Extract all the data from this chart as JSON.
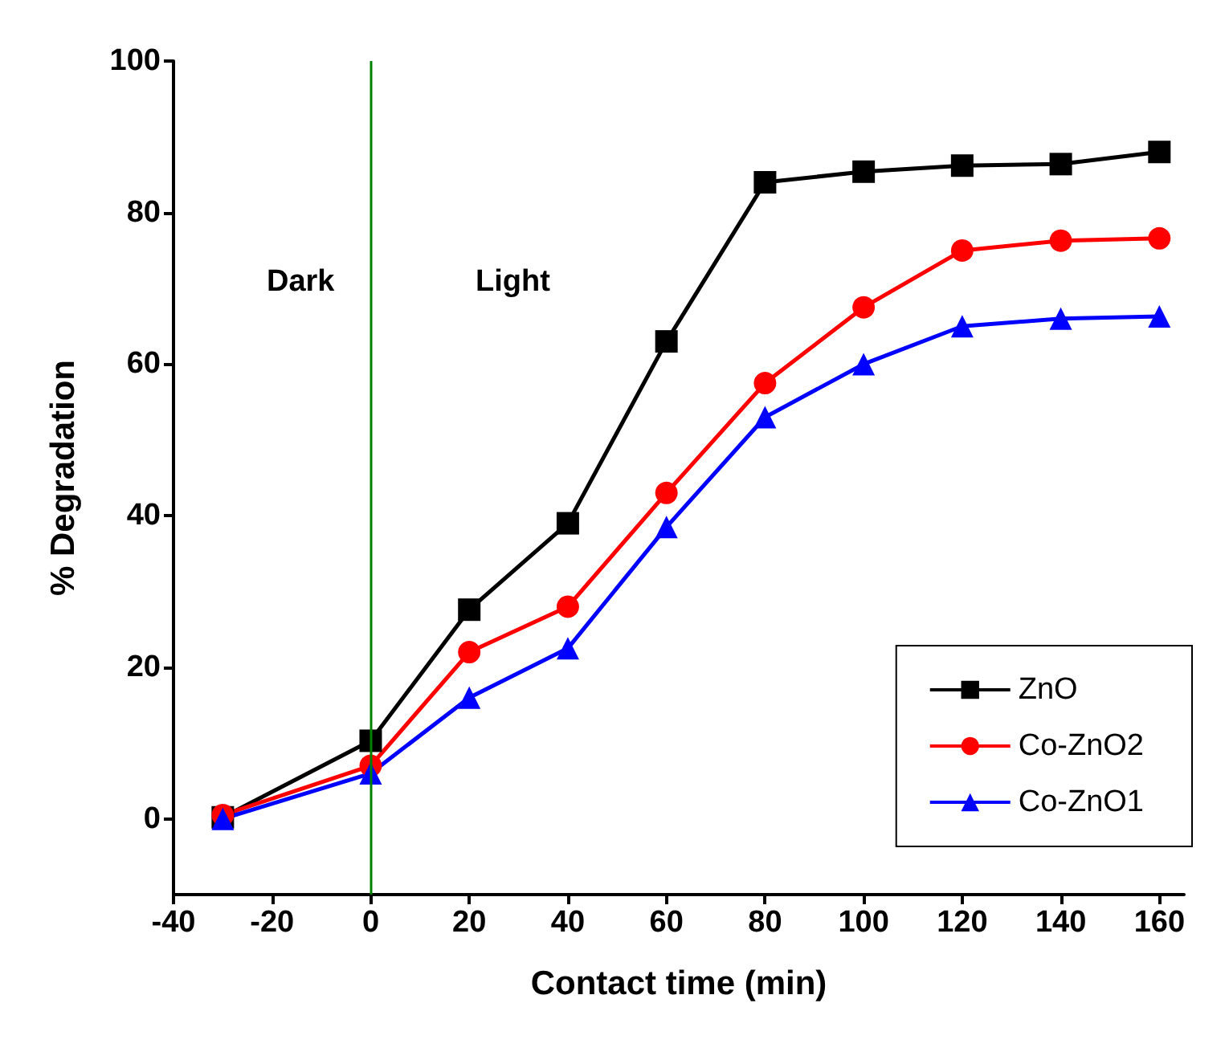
{
  "chart_data": {
    "type": "line",
    "xlabel": "Contact time (min)",
    "ylabel": "% Degradation",
    "x": [
      -30,
      0,
      20,
      40,
      60,
      80,
      100,
      120,
      140,
      160
    ],
    "series": [
      {
        "name": "ZnO",
        "color": "#000000",
        "marker": "square",
        "values": [
          0.2,
          10.3,
          27.6,
          39,
          63,
          84,
          85.4,
          86.2,
          86.4,
          88
        ]
      },
      {
        "name": "Co-ZnO2",
        "color": "#ff0000",
        "marker": "circle",
        "values": [
          0.5,
          7,
          22,
          28,
          43,
          57.5,
          67.5,
          75,
          76.3,
          76.6
        ]
      },
      {
        "name": "Co-ZnO1",
        "color": "#0000ff",
        "marker": "triangle",
        "values": [
          0,
          6,
          16,
          22.5,
          38.5,
          53,
          60,
          65,
          66,
          66.3
        ]
      }
    ],
    "xlim": [
      -40,
      165
    ],
    "xticks": [
      -40,
      -20,
      0,
      20,
      40,
      60,
      80,
      100,
      120,
      140,
      160
    ],
    "ylim": [
      -10,
      100
    ],
    "yticks": [
      0,
      20,
      40,
      60,
      80,
      100
    ],
    "ref_lines": [
      {
        "axis": "x",
        "value": 0,
        "color": "#008000"
      }
    ],
    "annotations": [
      "Dark",
      "Light"
    ],
    "legend": "bottom right",
    "grid": false,
    "line_style": "solid"
  }
}
